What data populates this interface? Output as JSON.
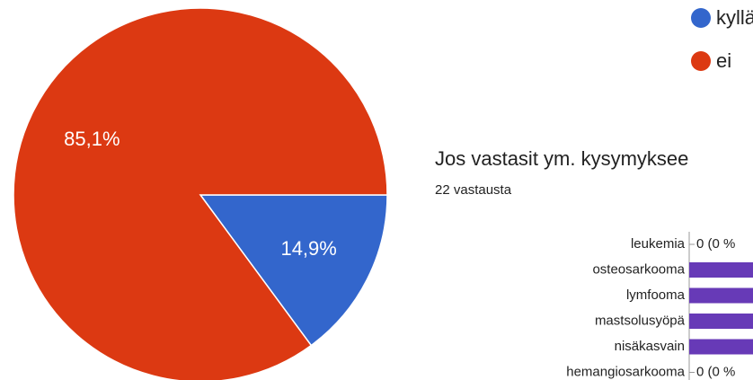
{
  "chart_data": [
    {
      "type": "pie",
      "series": [
        {
          "name": "kyllä",
          "color": "#3366cc",
          "values": [
            14.9
          ],
          "value_labels": [
            "14,9%"
          ]
        },
        {
          "name": "ei",
          "color": "#dc3912",
          "values": [
            85.1
          ],
          "value_labels": [
            "85,1%"
          ]
        }
      ]
    },
    {
      "type": "bar",
      "title": "Jos vastasit ym. kysymyksee",
      "subtitle": "22 vastausta",
      "categories": [
        "leukemia",
        "osteosarkooma",
        "lymfooma",
        "mastsolusyöpä",
        "nisäkasvain",
        "hemangiosarkooma"
      ],
      "values": [
        0,
        5,
        5,
        4,
        5,
        0
      ],
      "value_labels": [
        "0 (0 %",
        null,
        null,
        null,
        null,
        "0 (0 %"
      ],
      "color": "#673ab7",
      "xlim": [
        0,
        22
      ]
    }
  ]
}
